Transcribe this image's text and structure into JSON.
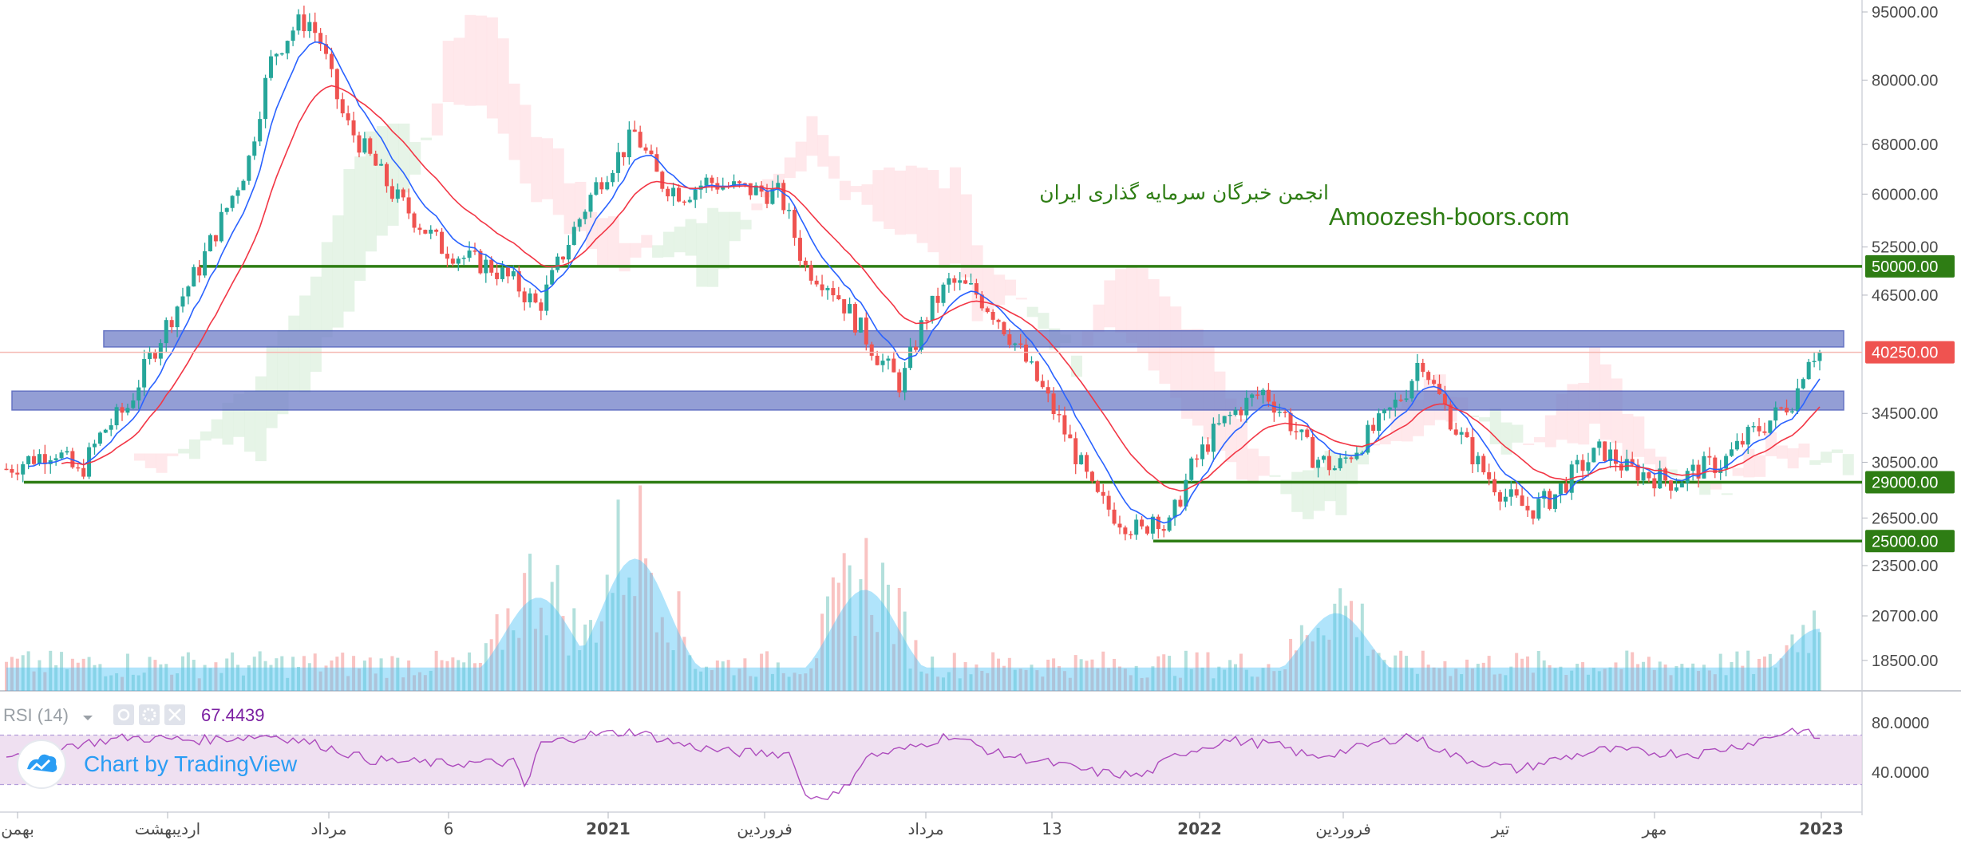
{
  "watermark": {
    "line1": "انجمن خبرگان سرمایه گذاری ایران",
    "line2": "Amoozesh-boors.com"
  },
  "branding": {
    "text": "Chart by TradingView"
  },
  "rsi": {
    "title": "RSI (14)",
    "value": "67.4439",
    "levels": [
      "80.0000",
      "40.0000"
    ]
  },
  "price_axis": {
    "ticks": [
      "95000.00",
      "80000.00",
      "68000.00",
      "60000.00",
      "52500.00",
      "46500.00",
      "34500.00",
      "30500.00",
      "26500.00",
      "23500.00",
      "20700.00",
      "18500.00"
    ],
    "badges": [
      {
        "label": "50000.00",
        "color": "#2e7d14"
      },
      {
        "label": "40250.00",
        "color": "#ef5350"
      },
      {
        "label": "29000.00",
        "color": "#2e7d14"
      },
      {
        "label": "25000.00",
        "color": "#2e7d14"
      }
    ]
  },
  "time_axis": {
    "labels": [
      "بهمن",
      "اردیبهشت",
      "مرداد",
      "6",
      "2021",
      "فروردین",
      "مرداد",
      "13",
      "2022",
      "فروردین",
      "تیر",
      "مهر",
      "2023"
    ]
  },
  "colors": {
    "up": "#26a69a",
    "down": "#ef5350",
    "support": "#2e7d14",
    "zone": "#7986cb",
    "ma_fast": "#2962ff",
    "ma_slow": "#f23645",
    "rsi_line": "#9c27b0",
    "rsi_band": "#e9d6ec",
    "volume_ma": "#4fc3f7"
  },
  "chart_data": {
    "type": "candlestick",
    "instrument_price_scale": "log",
    "y_ticks": [
      95000,
      80000,
      68000,
      60000,
      52500,
      46500,
      34500,
      30500,
      26500,
      23500,
      20700,
      18500
    ],
    "last_price": 40250,
    "horizontal_levels": [
      50000,
      29000,
      25000
    ],
    "resistance_zones": [
      [
        40800,
        42500
      ],
      [
        34800,
        36500
      ]
    ],
    "price_path": [
      [
        0,
        30000
      ],
      [
        4,
        31500
      ],
      [
        6,
        29500
      ],
      [
        8,
        33000
      ],
      [
        10,
        35000
      ],
      [
        12,
        40000
      ],
      [
        14,
        45000
      ],
      [
        16,
        50000
      ],
      [
        18,
        57000
      ],
      [
        20,
        65000
      ],
      [
        21,
        75000
      ],
      [
        22,
        85000
      ],
      [
        24,
        92000
      ],
      [
        25,
        93000
      ],
      [
        26,
        88000
      ],
      [
        27,
        79000
      ],
      [
        28,
        72000
      ],
      [
        30,
        66000
      ],
      [
        32,
        60000
      ],
      [
        34,
        56000
      ],
      [
        36,
        52500
      ],
      [
        38,
        51000
      ],
      [
        40,
        50000
      ],
      [
        42,
        48000
      ],
      [
        44,
        45000
      ],
      [
        45,
        48000
      ],
      [
        47,
        55000
      ],
      [
        49,
        62000
      ],
      [
        51,
        67000
      ],
      [
        52,
        70000
      ],
      [
        54,
        62000
      ],
      [
        56,
        60000
      ],
      [
        58,
        62000
      ],
      [
        60,
        61000
      ],
      [
        62,
        60500
      ],
      [
        64,
        60000
      ],
      [
        66,
        50000
      ],
      [
        68,
        48000
      ],
      [
        70,
        44000
      ],
      [
        72,
        40000
      ],
      [
        74,
        37000
      ],
      [
        76,
        44000
      ],
      [
        78,
        48000
      ],
      [
        80,
        47000
      ],
      [
        82,
        44000
      ],
      [
        84,
        40000
      ],
      [
        86,
        36000
      ],
      [
        88,
        32000
      ],
      [
        90,
        28000
      ],
      [
        92,
        26500
      ],
      [
        94,
        25500
      ],
      [
        95,
        27000
      ],
      [
        96,
        25500
      ],
      [
        98,
        30000
      ],
      [
        100,
        33000
      ],
      [
        102,
        35000
      ],
      [
        104,
        36500
      ],
      [
        106,
        34000
      ],
      [
        108,
        31000
      ],
      [
        110,
        30000
      ],
      [
        112,
        32000
      ],
      [
        114,
        34000
      ],
      [
        116,
        37000
      ],
      [
        117,
        40000
      ],
      [
        118,
        37000
      ],
      [
        120,
        33000
      ],
      [
        122,
        30000
      ],
      [
        124,
        28000
      ],
      [
        126,
        27000
      ],
      [
        128,
        28000
      ],
      [
        130,
        30000
      ],
      [
        132,
        31500
      ],
      [
        134,
        30000
      ],
      [
        136,
        29500
      ],
      [
        138,
        29000
      ],
      [
        140,
        30000
      ],
      [
        142,
        30500
      ],
      [
        144,
        32500
      ],
      [
        146,
        34000
      ],
      [
        148,
        36000
      ],
      [
        149,
        40000
      ],
      [
        150,
        40250
      ]
    ],
    "volume_relative_peaks": [
      {
        "at": 44,
        "level": 0.6
      },
      {
        "at": 52,
        "level": 0.85
      },
      {
        "at": 71,
        "level": 0.65
      },
      {
        "at": 110,
        "level": 0.5
      },
      {
        "at": 150,
        "level": 0.4
      }
    ],
    "rsi_range": [
      0,
      100
    ],
    "rsi_path": [
      [
        0,
        55
      ],
      [
        10,
        68
      ],
      [
        16,
        66
      ],
      [
        22,
        70
      ],
      [
        26,
        62
      ],
      [
        30,
        50
      ],
      [
        36,
        47
      ],
      [
        42,
        48
      ],
      [
        43,
        25
      ],
      [
        44,
        62
      ],
      [
        48,
        70
      ],
      [
        52,
        73
      ],
      [
        56,
        62
      ],
      [
        60,
        56
      ],
      [
        65,
        55
      ],
      [
        66,
        20
      ],
      [
        69,
        22
      ],
      [
        71,
        52
      ],
      [
        75,
        60
      ],
      [
        78,
        70
      ],
      [
        82,
        55
      ],
      [
        86,
        48
      ],
      [
        90,
        40
      ],
      [
        94,
        37
      ],
      [
        97,
        55
      ],
      [
        101,
        66
      ],
      [
        105,
        62
      ],
      [
        108,
        52
      ],
      [
        112,
        60
      ],
      [
        116,
        70
      ],
      [
        120,
        52
      ],
      [
        125,
        42
      ],
      [
        128,
        50
      ],
      [
        132,
        58
      ],
      [
        136,
        56
      ],
      [
        140,
        55
      ],
      [
        144,
        63
      ],
      [
        148,
        75
      ],
      [
        150,
        67.4439
      ]
    ]
  }
}
